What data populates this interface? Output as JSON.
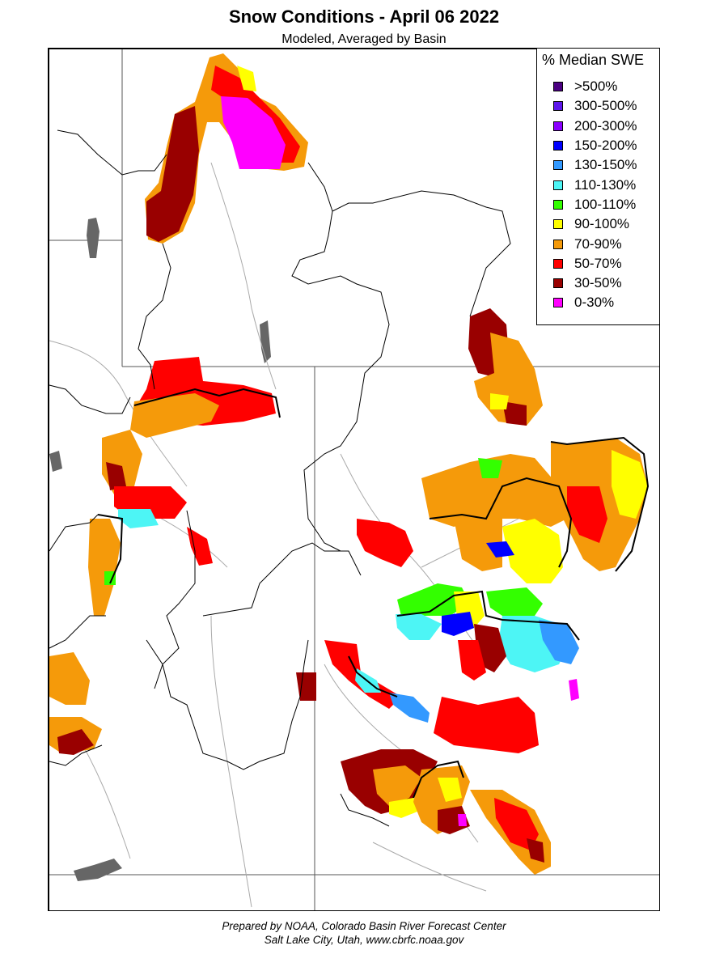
{
  "title": "Snow Conditions - April 06 2022",
  "subtitle": "Modeled, Averaged by Basin",
  "legend": {
    "title": "% Median SWE",
    "items": [
      {
        "label": ">500%",
        "color": "#4b0082"
      },
      {
        "label": "300-500%",
        "color": "#5e17eb"
      },
      {
        "label": "200-300%",
        "color": "#8a00ff"
      },
      {
        "label": "150-200%",
        "color": "#0000ff"
      },
      {
        "label": "130-150%",
        "color": "#3399ff"
      },
      {
        "label": "110-130%",
        "color": "#4df5f5"
      },
      {
        "label": "100-110%",
        "color": "#33ff00"
      },
      {
        "label": "90-100%",
        "color": "#ffff00"
      },
      {
        "label": "70-90%",
        "color": "#f59a0a"
      },
      {
        "label": "50-70%",
        "color": "#ff0000"
      },
      {
        "label": "30-50%",
        "color": "#990000"
      },
      {
        "label": "0-30%",
        "color": "#ff00ff"
      }
    ]
  },
  "credits": {
    "line1": "Prepared by NOAA, Colorado Basin River Forecast Center",
    "line2": "Salt Lake City, Utah, www.cbrfc.noaa.gov"
  }
}
